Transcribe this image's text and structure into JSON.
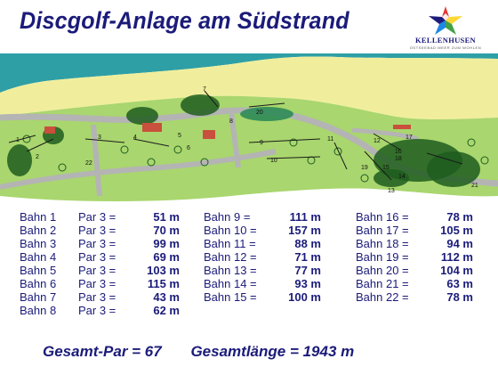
{
  "title": "Discgolf-Anlage am Südstrand",
  "logo": {
    "name": "KELLENHUSEN",
    "tagline": "OSTSEEBAD MEER ZUM WOHLEN",
    "colors": [
      "#e53935",
      "#fdd835",
      "#43a047",
      "#1e88e5",
      "#1b1b7a"
    ]
  },
  "map": {
    "colors": {
      "sea": "#2f9fa6",
      "beach": "#f0ee9c",
      "grass": "#a9d66e",
      "path": "#b4b4b4",
      "trees": "#1f5d1f",
      "building": "#c8503c"
    },
    "hole_labels": [
      "1",
      "2",
      "3",
      "4",
      "5",
      "6",
      "7",
      "8",
      "9",
      "10",
      "11",
      "12",
      "13",
      "14",
      "15",
      "16",
      "17",
      "18",
      "19",
      "20",
      "21",
      "22"
    ]
  },
  "holes": {
    "col1": [
      {
        "label": "Bahn 1",
        "par": "Par 3 =",
        "length": "51 m"
      },
      {
        "label": "Bahn 2",
        "par": "Par 3 =",
        "length": "70 m"
      },
      {
        "label": "Bahn 3",
        "par": "Par 3 =",
        "length": "99 m"
      },
      {
        "label": "Bahn 4",
        "par": "Par 3 =",
        "length": "69 m"
      },
      {
        "label": "Bahn 5",
        "par": "Par 3 =",
        "length": "103 m"
      },
      {
        "label": "Bahn 6",
        "par": "Par 3 =",
        "length": "115 m"
      },
      {
        "label": "Bahn 7",
        "par": "Par 3 =",
        "length": "43 m"
      },
      {
        "label": "Bahn 8",
        "par": "Par 3 =",
        "length": "62 m"
      }
    ],
    "col2": [
      {
        "label": "Bahn  9 =",
        "length": "111 m"
      },
      {
        "label": "Bahn 10 =",
        "length": "157 m"
      },
      {
        "label": "Bahn 11 =",
        "length": "88 m"
      },
      {
        "label": "Bahn 12 =",
        "length": "71 m"
      },
      {
        "label": "Bahn 13 =",
        "length": "77 m"
      },
      {
        "label": "Bahn 14 =",
        "length": "93 m"
      },
      {
        "label": "Bahn 15 =",
        "length": "100 m"
      }
    ],
    "col3": [
      {
        "label": "Bahn 16 =",
        "length": "78 m"
      },
      {
        "label": "Bahn 17 =",
        "length": "105 m"
      },
      {
        "label": "Bahn 18 =",
        "length": "94 m"
      },
      {
        "label": "Bahn 19 =",
        "length": "112 m"
      },
      {
        "label": "Bahn 20 =",
        "length": "104 m"
      },
      {
        "label": "Bahn 21 =",
        "length": "63 m"
      },
      {
        "label": "Bahn 22 =",
        "length": "78 m"
      }
    ]
  },
  "totals": {
    "par": "Gesamt-Par = 67",
    "length": "Gesamtlänge = 1943 m"
  }
}
